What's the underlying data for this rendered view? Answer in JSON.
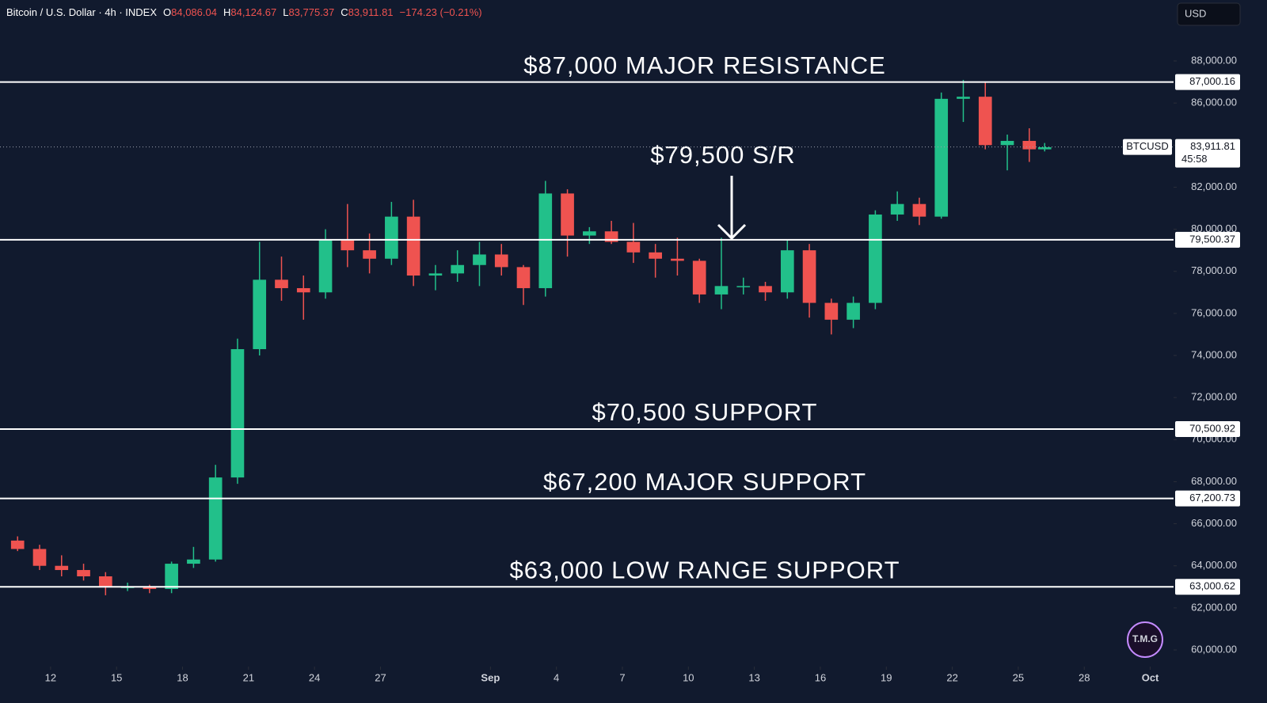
{
  "header": {
    "symbol": "Bitcoin / U.S. Dollar · 4h · INDEX",
    "ohlc": [
      {
        "key": "O",
        "value": "84,086.04"
      },
      {
        "key": "H",
        "value": "84,124.67"
      },
      {
        "key": "L",
        "value": "83,775.37"
      },
      {
        "key": "C",
        "value": "83,911.81"
      }
    ],
    "change": "−174.23 (−0.21%)",
    "currency": "USD",
    "logo": "T.M.G"
  },
  "chart_data": {
    "type": "candlestick",
    "up_color": "#22c08a",
    "down_color": "#ef5350",
    "x": [
      10.5,
      11.5,
      12.5,
      13.5,
      14.5,
      15.5,
      16.5,
      17.5,
      18.5,
      19.5,
      20.5,
      21.5,
      22.5,
      23.5,
      24.5,
      25.5,
      26.5,
      27.5,
      28.5,
      29.5,
      30.5,
      31.5,
      32.5,
      33.5,
      34.5,
      35.5,
      36.5,
      37.5,
      38.5,
      39.5,
      40.5,
      41.5,
      42.5,
      43.5,
      44.5,
      45.5,
      46.5,
      47.5,
      48.5,
      49.5,
      50.5,
      51.5,
      52.5,
      53.5,
      54.5,
      55.5,
      56.5,
      57.2
    ],
    "open": [
      65200,
      64800,
      64000,
      63800,
      63500,
      63000,
      63000,
      62900,
      64100,
      64300,
      68200,
      74300,
      77600,
      77200,
      77000,
      79500,
      79000,
      78600,
      80600,
      77800,
      77900,
      78300,
      78800,
      78200,
      77200,
      81700,
      79700,
      79900,
      79400,
      78900,
      78600,
      78500,
      76900,
      77300,
      77300,
      77000,
      79000,
      76500,
      75700,
      76500,
      80700,
      81200,
      80600,
      86200,
      86300,
      84000,
      84200,
      83800
    ],
    "high": [
      65400,
      65000,
      64500,
      64100,
      63700,
      63200,
      63100,
      64200,
      64900,
      68800,
      74800,
      79400,
      78700,
      77800,
      80000,
      81200,
      79800,
      81300,
      81400,
      78300,
      79000,
      79400,
      79300,
      78300,
      82300,
      81900,
      80100,
      80400,
      80300,
      79300,
      79600,
      78600,
      79600,
      77700,
      77500,
      79500,
      79300,
      76700,
      76800,
      80900,
      81800,
      81500,
      86500,
      87100,
      87000,
      84500,
      84800,
      84100
    ],
    "low": [
      64700,
      63800,
      63500,
      63300,
      62600,
      62800,
      62700,
      62700,
      63900,
      64200,
      67900,
      74000,
      76600,
      75700,
      76700,
      78200,
      77900,
      78300,
      77300,
      77100,
      77500,
      77300,
      77800,
      76400,
      76800,
      78700,
      79300,
      79300,
      78400,
      77700,
      77800,
      76500,
      76200,
      76900,
      76600,
      76700,
      75800,
      75000,
      75300,
      76200,
      80400,
      80200,
      80500,
      85100,
      83800,
      82800,
      83200,
      83700
    ],
    "close": [
      64800,
      64000,
      63800,
      63500,
      63000,
      63000,
      62900,
      64100,
      64300,
      68200,
      74300,
      77600,
      77200,
      77000,
      79500,
      79000,
      78600,
      80600,
      77800,
      77900,
      78300,
      78800,
      78200,
      77200,
      81700,
      79700,
      79900,
      79400,
      78900,
      78600,
      78500,
      76900,
      77300,
      77300,
      77000,
      79000,
      76500,
      75700,
      76500,
      80700,
      81200,
      80600,
      86200,
      86300,
      84000,
      84200,
      83800,
      83900
    ],
    "xlim": [
      9.7,
      63.06
    ],
    "ylim": [
      59285,
      90898
    ],
    "xticks": [
      12,
      15,
      18,
      21,
      24,
      27,
      {
        "value": 32,
        "label": "Sep"
      },
      {
        "value": 35,
        "label": "4"
      },
      {
        "value": 38,
        "label": "7"
      },
      {
        "value": 41,
        "label": "10"
      },
      {
        "value": 44,
        "label": "13"
      },
      {
        "value": 47,
        "label": "16"
      },
      {
        "value": 50,
        "label": "19"
      },
      {
        "value": 53,
        "label": "22"
      },
      {
        "value": 56,
        "label": "25"
      },
      {
        "value": 59,
        "label": "28"
      },
      {
        "value": 62,
        "label": "Oct"
      }
    ],
    "yticks": [
      {
        "value": 60000,
        "label": "60,000.00"
      },
      {
        "value": 62000,
        "label": "62,000.00"
      },
      {
        "value": 64000,
        "label": "64,000.00"
      },
      {
        "value": 66000,
        "label": "66,000.00"
      },
      {
        "value": 68000,
        "label": "68,000.00"
      },
      {
        "value": 70000,
        "label": "70,000.00"
      },
      {
        "value": 72000,
        "label": "72,000.00"
      },
      {
        "value": 74000,
        "label": "74,000.00"
      },
      {
        "value": 76000,
        "label": "76,000.00"
      },
      {
        "value": 78000,
        "label": "78,000.00"
      },
      {
        "value": 80000,
        "label": "80,000.00"
      },
      {
        "value": 82000,
        "label": "82,000.00"
      },
      {
        "value": 84000,
        "label": "84,000.00"
      },
      {
        "value": 86000,
        "label": "86,000.00"
      },
      {
        "value": 88000,
        "label": "88,000.00"
      }
    ],
    "levels": [
      {
        "value": 87000.16,
        "label": "87,000.16",
        "annotation": "$87,000 MAJOR RESISTANCE"
      },
      {
        "value": 79500.37,
        "label": "79,500.37",
        "annotation": "$79,500 S/R"
      },
      {
        "value": 70500.92,
        "label": "70,500.92",
        "annotation": "$70,500 SUPPORT"
      },
      {
        "value": 67200.73,
        "label": "67,200.73",
        "annotation": "$67,200 MAJOR SUPPORT"
      },
      {
        "value": 63000.62,
        "label": "63,000.62",
        "annotation": "$63,000 LOW RANGE SUPPORT"
      }
    ],
    "price_line": {
      "value": 83911.81,
      "label": "83,911.81",
      "symbol": "BTCUSD",
      "countdown": "45:58"
    }
  }
}
